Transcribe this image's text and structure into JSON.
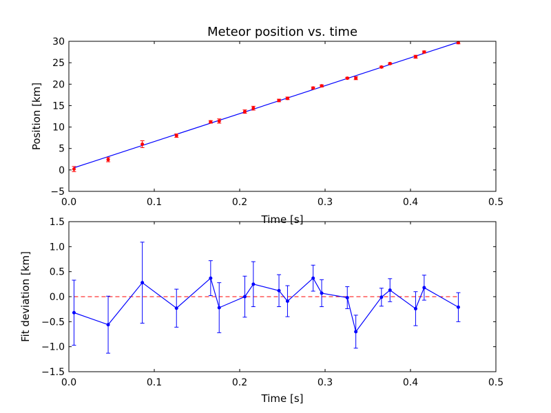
{
  "chart_data": [
    {
      "type": "scatter",
      "title": "Meteor position vs. time",
      "xlabel": "Time [s]",
      "ylabel": "Position [km]",
      "xlim": [
        0.0,
        0.5
      ],
      "ylim": [
        -5,
        30
      ],
      "xticks": [
        "0.0",
        "0.1",
        "0.2",
        "0.3",
        "0.4",
        "0.5"
      ],
      "yticks": [
        "−5",
        "0",
        "5",
        "10",
        "15",
        "20",
        "25",
        "30"
      ],
      "marker_color": "#ff0000",
      "line_color": "#0000ff",
      "points": [
        {
          "x": 0.006,
          "y": 0.2,
          "err": 0.6
        },
        {
          "x": 0.046,
          "y": 2.4,
          "err": 0.5
        },
        {
          "x": 0.086,
          "y": 6.0,
          "err": 0.8
        },
        {
          "x": 0.126,
          "y": 8.0,
          "err": 0.4
        },
        {
          "x": 0.166,
          "y": 11.2,
          "err": 0.3
        },
        {
          "x": 0.176,
          "y": 11.4,
          "err": 0.5
        },
        {
          "x": 0.206,
          "y": 13.6,
          "err": 0.4
        },
        {
          "x": 0.216,
          "y": 14.4,
          "err": 0.45
        },
        {
          "x": 0.246,
          "y": 16.2,
          "err": 0.3
        },
        {
          "x": 0.256,
          "y": 16.7,
          "err": 0.3
        },
        {
          "x": 0.286,
          "y": 19.1,
          "err": 0.25
        },
        {
          "x": 0.296,
          "y": 19.6,
          "err": 0.25
        },
        {
          "x": 0.326,
          "y": 21.4,
          "err": 0.2
        },
        {
          "x": 0.336,
          "y": 21.4,
          "err": 0.35
        },
        {
          "x": 0.366,
          "y": 24.0,
          "err": 0.2
        },
        {
          "x": 0.376,
          "y": 24.8,
          "err": 0.2
        },
        {
          "x": 0.406,
          "y": 26.4,
          "err": 0.35
        },
        {
          "x": 0.416,
          "y": 27.5,
          "err": 0.25
        },
        {
          "x": 0.456,
          "y": 29.7,
          "err": 0.3
        }
      ],
      "fit_line": {
        "x": [
          0.006,
          0.456
        ],
        "y": [
          0.5,
          29.8
        ]
      }
    },
    {
      "type": "line",
      "xlabel": "Time [s]",
      "ylabel": "Fit deviation [km]",
      "xlim": [
        0.0,
        0.5
      ],
      "ylim": [
        -1.5,
        1.5
      ],
      "xticks": [
        "0.0",
        "0.1",
        "0.2",
        "0.3",
        "0.4",
        "0.5"
      ],
      "yticks": [
        "−1.5",
        "−1.0",
        "−0.5",
        "0.0",
        "0.5",
        "1.0",
        "1.5"
      ],
      "line_color": "#0000ff",
      "zero_line_color": "#ff0000",
      "points": [
        {
          "x": 0.006,
          "y": -0.32,
          "err": 0.65
        },
        {
          "x": 0.046,
          "y": -0.56,
          "err": 0.57
        },
        {
          "x": 0.086,
          "y": 0.28,
          "err": 0.81
        },
        {
          "x": 0.126,
          "y": -0.23,
          "err": 0.38
        },
        {
          "x": 0.166,
          "y": 0.37,
          "err": 0.35
        },
        {
          "x": 0.176,
          "y": -0.22,
          "err": 0.5
        },
        {
          "x": 0.206,
          "y": 0.0,
          "err": 0.41
        },
        {
          "x": 0.216,
          "y": 0.25,
          "err": 0.45
        },
        {
          "x": 0.246,
          "y": 0.12,
          "err": 0.32
        },
        {
          "x": 0.256,
          "y": -0.09,
          "err": 0.31
        },
        {
          "x": 0.286,
          "y": 0.37,
          "err": 0.26
        },
        {
          "x": 0.296,
          "y": 0.07,
          "err": 0.27
        },
        {
          "x": 0.326,
          "y": -0.02,
          "err": 0.22
        },
        {
          "x": 0.336,
          "y": -0.7,
          "err": 0.33
        },
        {
          "x": 0.366,
          "y": -0.01,
          "err": 0.18
        },
        {
          "x": 0.376,
          "y": 0.13,
          "err": 0.23
        },
        {
          "x": 0.406,
          "y": -0.24,
          "err": 0.34
        },
        {
          "x": 0.416,
          "y": 0.18,
          "err": 0.25
        },
        {
          "x": 0.456,
          "y": -0.21,
          "err": 0.29
        }
      ]
    }
  ]
}
